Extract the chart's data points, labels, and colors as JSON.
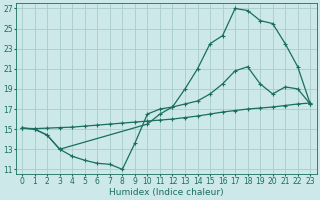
{
  "bg_color": "#cce8e8",
  "grid_color": "#aacccc",
  "line_color": "#1a6e60",
  "line_width": 0.9,
  "marker": "+",
  "marker_size": 3.5,
  "marker_ew": 0.8,
  "xlim": [
    -0.5,
    23.5
  ],
  "ylim": [
    10.5,
    27.5
  ],
  "xticks": [
    0,
    1,
    2,
    3,
    4,
    5,
    6,
    7,
    8,
    9,
    10,
    11,
    12,
    13,
    14,
    15,
    16,
    17,
    18,
    19,
    20,
    21,
    22,
    23
  ],
  "yticks": [
    11,
    13,
    15,
    17,
    19,
    21,
    23,
    25,
    27
  ],
  "xlabel": "Humidex (Indice chaleur)",
  "label_fontsize": 6.5,
  "tick_fontsize": 5.5,
  "line1_x": [
    0,
    1,
    2,
    3,
    10,
    11,
    12,
    13,
    14,
    15,
    16,
    17,
    18,
    19,
    20,
    21,
    22,
    23
  ],
  "line1_y": [
    15.1,
    15.0,
    14.4,
    13.0,
    15.5,
    16.5,
    17.2,
    19.0,
    21.0,
    23.5,
    24.3,
    27.0,
    26.8,
    25.8,
    25.5,
    23.5,
    21.2,
    17.5
  ],
  "line2_x": [
    0,
    1,
    2,
    3,
    4,
    5,
    6,
    7,
    8,
    9,
    10,
    11,
    12,
    13,
    14,
    15,
    16,
    17,
    18,
    19,
    20,
    21,
    22,
    23
  ],
  "line2_y": [
    15.1,
    15.05,
    15.1,
    15.15,
    15.2,
    15.3,
    15.4,
    15.5,
    15.6,
    15.7,
    15.8,
    15.9,
    16.0,
    16.15,
    16.3,
    16.5,
    16.7,
    16.85,
    17.0,
    17.1,
    17.2,
    17.35,
    17.5,
    17.6
  ],
  "line3_x": [
    0,
    1,
    2,
    3,
    4,
    5,
    6,
    7,
    8,
    9,
    10,
    11,
    12,
    13,
    14,
    15,
    16,
    17,
    18,
    19,
    20,
    21,
    22,
    23
  ],
  "line3_y": [
    15.1,
    15.0,
    14.4,
    13.0,
    12.3,
    11.9,
    11.6,
    11.5,
    11.0,
    13.6,
    16.5,
    17.0,
    17.2,
    17.5,
    17.8,
    18.5,
    19.5,
    20.8,
    21.2,
    19.5,
    18.5,
    19.2,
    19.0,
    17.5
  ]
}
